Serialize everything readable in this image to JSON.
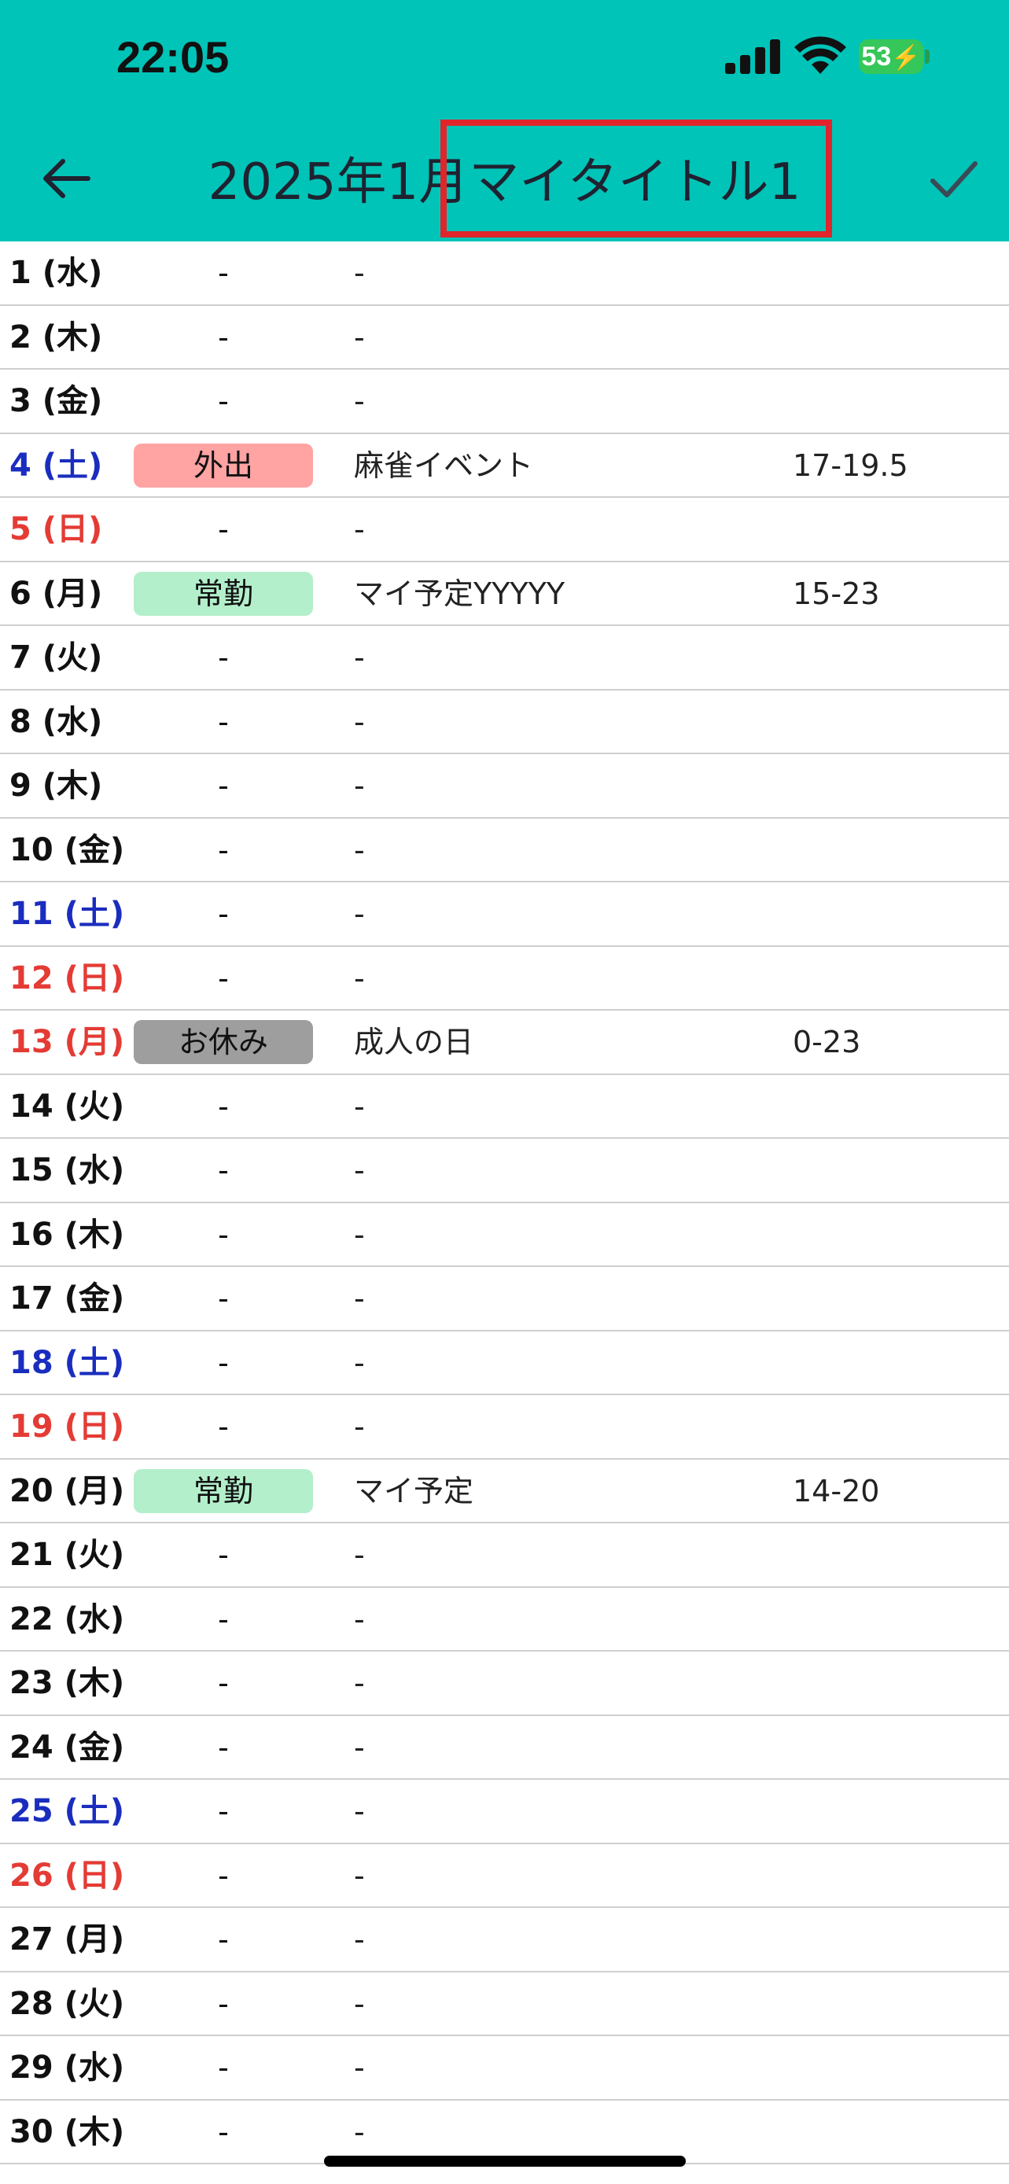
{
  "status_bar": {
    "time": "22:05",
    "battery": "53"
  },
  "header": {
    "title": "2025年1月マイタイトル1",
    "background": "#00C4B8"
  },
  "colors": {
    "saturday": "#1A2DBE",
    "sunday_holiday": "#E43B35",
    "category_outing": "#FFA3A3",
    "category_regular": "#B3EFCB",
    "category_off": "#9E9E9E",
    "highlight": "#E0262C"
  },
  "days": [
    {
      "day": "1 (水)",
      "kind": "weekday",
      "category": "-",
      "category_color": "",
      "description": "-",
      "hours": ""
    },
    {
      "day": "2 (木)",
      "kind": "weekday",
      "category": "-",
      "category_color": "",
      "description": "-",
      "hours": ""
    },
    {
      "day": "3 (金)",
      "kind": "weekday",
      "category": "-",
      "category_color": "",
      "description": "-",
      "hours": ""
    },
    {
      "day": "4 (土)",
      "kind": "sat",
      "category": "外出",
      "category_color": "#FFA3A3",
      "description": "麻雀イベント",
      "hours": "17-19.5"
    },
    {
      "day": "5 (日)",
      "kind": "sun",
      "category": "-",
      "category_color": "",
      "description": "-",
      "hours": ""
    },
    {
      "day": "6 (月)",
      "kind": "weekday",
      "category": "常勤",
      "category_color": "#B3EFCB",
      "description": "マイ予定YYYYY",
      "hours": "15-23"
    },
    {
      "day": "7 (火)",
      "kind": "weekday",
      "category": "-",
      "category_color": "",
      "description": "-",
      "hours": ""
    },
    {
      "day": "8 (水)",
      "kind": "weekday",
      "category": "-",
      "category_color": "",
      "description": "-",
      "hours": ""
    },
    {
      "day": "9 (木)",
      "kind": "weekday",
      "category": "-",
      "category_color": "",
      "description": "-",
      "hours": ""
    },
    {
      "day": "10 (金)",
      "kind": "weekday",
      "category": "-",
      "category_color": "",
      "description": "-",
      "hours": ""
    },
    {
      "day": "11 (土)",
      "kind": "sat",
      "category": "-",
      "category_color": "",
      "description": "-",
      "hours": ""
    },
    {
      "day": "12 (日)",
      "kind": "sun",
      "category": "-",
      "category_color": "",
      "description": "-",
      "hours": ""
    },
    {
      "day": "13 (月)",
      "kind": "sun",
      "category": "お休み",
      "category_color": "#9E9E9E",
      "description": "成人の日",
      "hours": "0-23"
    },
    {
      "day": "14 (火)",
      "kind": "weekday",
      "category": "-",
      "category_color": "",
      "description": "-",
      "hours": ""
    },
    {
      "day": "15 (水)",
      "kind": "weekday",
      "category": "-",
      "category_color": "",
      "description": "-",
      "hours": ""
    },
    {
      "day": "16 (木)",
      "kind": "weekday",
      "category": "-",
      "category_color": "",
      "description": "-",
      "hours": ""
    },
    {
      "day": "17 (金)",
      "kind": "weekday",
      "category": "-",
      "category_color": "",
      "description": "-",
      "hours": ""
    },
    {
      "day": "18 (土)",
      "kind": "sat",
      "category": "-",
      "category_color": "",
      "description": "-",
      "hours": ""
    },
    {
      "day": "19 (日)",
      "kind": "sun",
      "category": "-",
      "category_color": "",
      "description": "-",
      "hours": ""
    },
    {
      "day": "20 (月)",
      "kind": "weekday",
      "category": "常勤",
      "category_color": "#B3EFCB",
      "description": "マイ予定",
      "hours": "14-20"
    },
    {
      "day": "21 (火)",
      "kind": "weekday",
      "category": "-",
      "category_color": "",
      "description": "-",
      "hours": ""
    },
    {
      "day": "22 (水)",
      "kind": "weekday",
      "category": "-",
      "category_color": "",
      "description": "-",
      "hours": ""
    },
    {
      "day": "23 (木)",
      "kind": "weekday",
      "category": "-",
      "category_color": "",
      "description": "-",
      "hours": ""
    },
    {
      "day": "24 (金)",
      "kind": "weekday",
      "category": "-",
      "category_color": "",
      "description": "-",
      "hours": ""
    },
    {
      "day": "25 (土)",
      "kind": "sat",
      "category": "-",
      "category_color": "",
      "description": "-",
      "hours": ""
    },
    {
      "day": "26 (日)",
      "kind": "sun",
      "category": "-",
      "category_color": "",
      "description": "-",
      "hours": ""
    },
    {
      "day": "27 (月)",
      "kind": "weekday",
      "category": "-",
      "category_color": "",
      "description": "-",
      "hours": ""
    },
    {
      "day": "28 (火)",
      "kind": "weekday",
      "category": "-",
      "category_color": "",
      "description": "-",
      "hours": ""
    },
    {
      "day": "29 (水)",
      "kind": "weekday",
      "category": "-",
      "category_color": "",
      "description": "-",
      "hours": ""
    },
    {
      "day": "30 (木)",
      "kind": "weekday",
      "category": "-",
      "category_color": "",
      "description": "-",
      "hours": ""
    }
  ]
}
